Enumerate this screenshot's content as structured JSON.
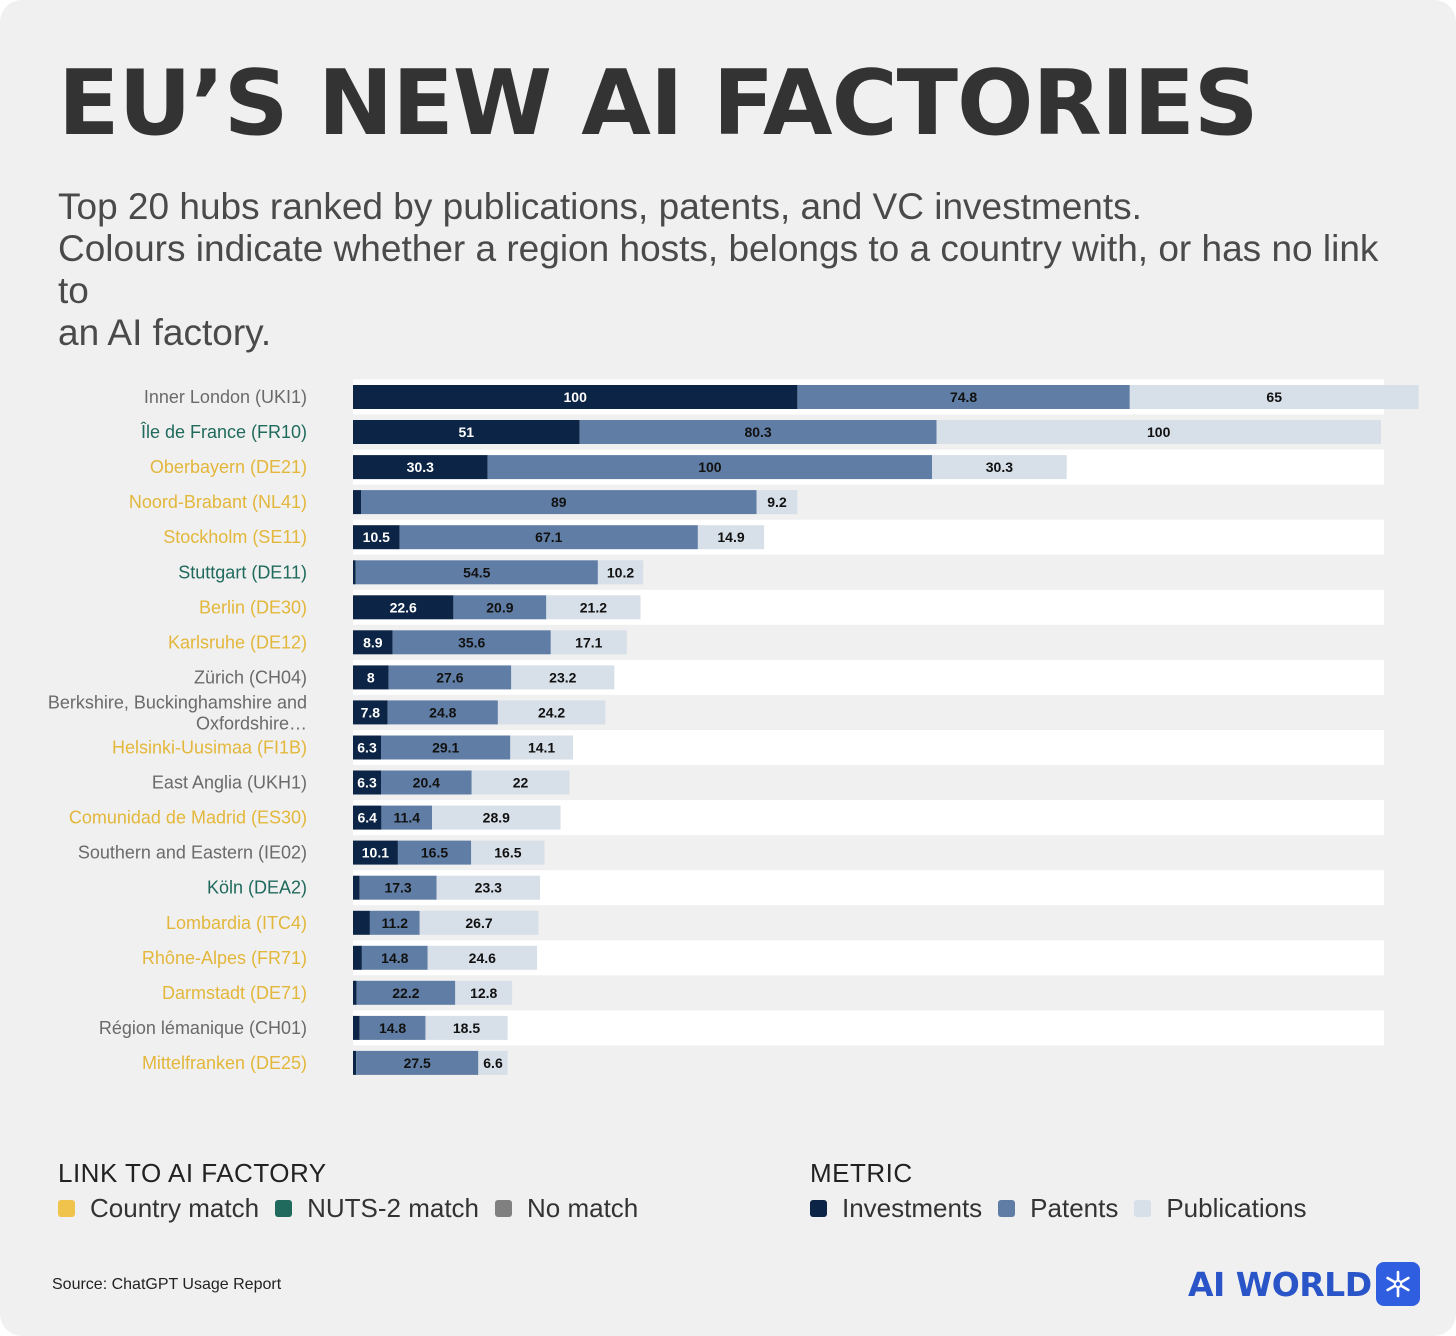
{
  "header": {
    "title": "EU’S NEW AI FACTORIES",
    "subtitle_lines": [
      "Top 20 hubs ranked by publications, patents, and VC investments.",
      "Colours indicate whether a region hosts, belongs to a country with, or has no link to",
      "an AI factory."
    ]
  },
  "colors": {
    "country_match": "#f0c44c",
    "nuts2_match": "#1f6a5c",
    "no_match": "#808080",
    "investments": "#0c2445",
    "patents": "#607ea5",
    "publications": "#d7dfe8",
    "label_no_match": "#6a6a6a",
    "label_country": "#e3b73b",
    "label_nuts2": "#1f6a5c"
  },
  "chart_data": {
    "type": "bar",
    "orientation": "horizontal",
    "stacked": true,
    "categories": [
      "Inner London (UKI1)",
      "Île de France (FR10)",
      "Oberbayern (DE21)",
      "Noord-Brabant (NL41)",
      "Stockholm (SE11)",
      "Stuttgart (DE11)",
      "Berlin (DE30)",
      "Karlsruhe (DE12)",
      "Zürich (CH04)",
      "Berkshire, Buckinghamshire and Oxfordshire…",
      "Helsinki-Uusimaa (FI1B)",
      "East Anglia (UKH1)",
      "Comunidad de Madrid (ES30)",
      "Southern and Eastern (IE02)",
      "Köln (DEA2)",
      "Lombardia (ITC4)",
      "Rhône-Alpes (FR71)",
      "Darmstadt (DE71)",
      "Région lémanique (CH01)",
      "Mittelfranken (DE25)"
    ],
    "category_link": [
      "no_match",
      "nuts2_match",
      "country_match",
      "country_match",
      "country_match",
      "nuts2_match",
      "country_match",
      "country_match",
      "no_match",
      "no_match",
      "country_match",
      "no_match",
      "country_match",
      "no_match",
      "nuts2_match",
      "country_match",
      "country_match",
      "country_match",
      "no_match",
      "country_match"
    ],
    "series": [
      {
        "name": "Investments",
        "values": [
          100,
          51,
          30.3,
          1.8,
          10.5,
          0.6,
          22.6,
          8.9,
          8,
          7.8,
          6.3,
          6.3,
          6.4,
          10.1,
          1.5,
          3.8,
          2,
          0.8,
          1.5,
          0.7
        ],
        "labels": [
          "100",
          "51",
          "30.3",
          "",
          "10.5",
          "",
          "22.6",
          "8.9",
          "8",
          "7.8",
          "6.3",
          "6.3",
          "6.4",
          "10.1",
          "",
          "",
          "",
          "",
          "",
          ""
        ]
      },
      {
        "name": "Patents",
        "values": [
          74.8,
          80.3,
          100,
          89,
          67.1,
          54.5,
          20.9,
          35.6,
          27.6,
          24.8,
          29.1,
          20.4,
          11.4,
          16.5,
          17.3,
          11.2,
          14.8,
          22.2,
          14.8,
          27.5
        ],
        "labels": [
          "74.8",
          "80.3",
          "100",
          "89",
          "67.1",
          "54.5",
          "20.9",
          "35.6",
          "27.6",
          "24.8",
          "29.1",
          "20.4",
          "11.4",
          "16.5",
          "17.3",
          "11.2",
          "14.8",
          "22.2",
          "14.8",
          "27.5"
        ]
      },
      {
        "name": "Publications",
        "values": [
          65,
          100,
          30.3,
          9.2,
          14.9,
          10.2,
          21.2,
          17.1,
          23.2,
          24.2,
          14.1,
          22,
          28.9,
          16.5,
          23.3,
          26.7,
          24.6,
          12.8,
          18.5,
          6.6
        ],
        "labels": [
          "65",
          "100",
          "30.3",
          "9.2",
          "14.9",
          "10.2",
          "21.2",
          "17.1",
          "23.2",
          "24.2",
          "14.1",
          "22",
          "28.9",
          "16.5",
          "23.3",
          "26.7",
          "24.6",
          "12.8",
          "18.5",
          "6.6"
        ]
      }
    ],
    "xlim": [
      0,
      232
    ],
    "grid": false,
    "legend": "bottom"
  },
  "legend_link": {
    "title": "LINK TO AI FACTORY",
    "items": [
      {
        "key": "country_match",
        "label": "Country match"
      },
      {
        "key": "nuts2_match",
        "label": "NUTS-2 match"
      },
      {
        "key": "no_match",
        "label": "No match"
      }
    ]
  },
  "legend_metric": {
    "title": "METRIC",
    "items": [
      {
        "key": "investments",
        "label": "Investments"
      },
      {
        "key": "patents",
        "label": "Patents"
      },
      {
        "key": "publications",
        "label": "Publications"
      }
    ]
  },
  "footer": {
    "source": "Source: ChatGPT Usage Report",
    "brand": "AI WORLD",
    "brand_icon": "snowflake-icon"
  }
}
